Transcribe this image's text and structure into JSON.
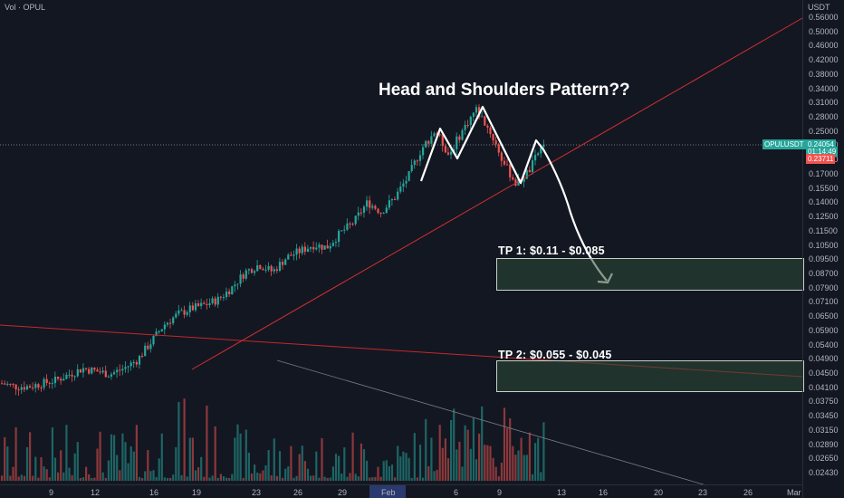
{
  "header": {
    "volume_label": "Vol · OPUL",
    "currency": "USDT"
  },
  "annotation": {
    "title": "Head and Shoulders Pattern??",
    "tp1": "TP 1: $0.11 - $0.085",
    "tp2": "TP 2: $0.055 - $0.045"
  },
  "price_tags": {
    "symbol": "OPULUSDT",
    "last_price": "0.24054",
    "countdown": "01:14:49",
    "low_tag": "0.23711",
    "symbol_color": "#26a69a",
    "low_color": "#ef5350"
  },
  "chart_data": {
    "type": "candlestick",
    "symbol": "OPULUSDT",
    "scale": "log",
    "price_axis_labels": [
      "0.56000",
      "0.50000",
      "0.46000",
      "0.42000",
      "0.38000",
      "0.34000",
      "0.31000",
      "0.28000",
      "0.25000",
      "0.21000",
      "0.19000",
      "0.17000",
      "0.15500",
      "0.14000",
      "0.12500",
      "0.11500",
      "0.10500",
      "0.09500",
      "0.08700",
      "0.07900",
      "0.07100",
      "0.06500",
      "0.05900",
      "0.05400",
      "0.04900",
      "0.04500",
      "0.04100",
      "0.03750",
      "0.03450",
      "0.03150",
      "0.02890",
      "0.02650",
      "0.02430"
    ],
    "time_axis_labels": [
      "9",
      "12",
      "16",
      "19",
      "23",
      "26",
      "29",
      "Feb",
      "6",
      "9",
      "13",
      "16",
      "20",
      "23",
      "26",
      "Mar"
    ],
    "current_price": 0.24054,
    "take_profit_zones": [
      {
        "label": "TP 1",
        "high": 0.11,
        "low": 0.085
      },
      {
        "label": "TP 2",
        "high": 0.055,
        "low": 0.045
      }
    ],
    "price_path_approx": [
      0.047,
      0.046,
      0.046,
      0.047,
      0.048,
      0.05,
      0.052,
      0.051,
      0.05,
      0.052,
      0.055,
      0.062,
      0.07,
      0.075,
      0.078,
      0.08,
      0.083,
      0.09,
      0.1,
      0.105,
      0.1,
      0.11,
      0.115,
      0.12,
      0.118,
      0.13,
      0.14,
      0.16,
      0.15,
      0.165,
      0.19,
      0.23,
      0.26,
      0.22,
      0.26,
      0.3,
      0.26,
      0.21,
      0.18,
      0.2,
      0.24
    ]
  }
}
